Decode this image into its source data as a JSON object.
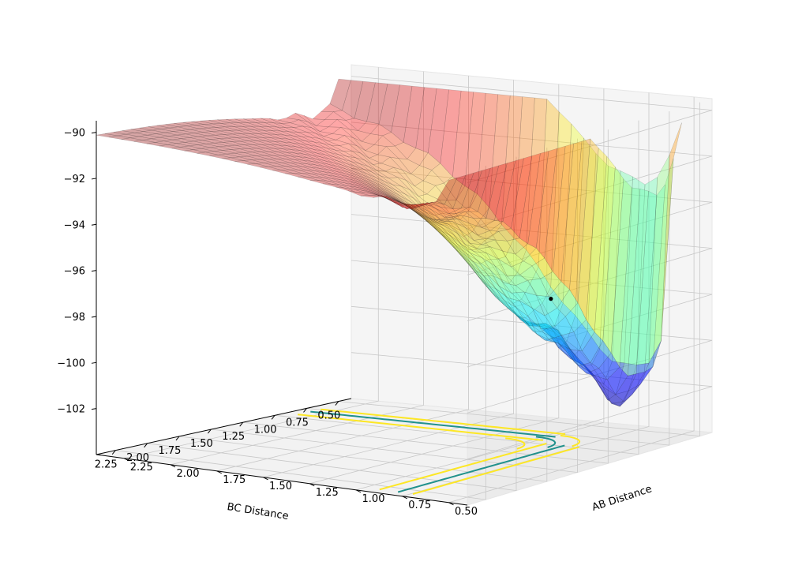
{
  "chart_data": {
    "type": "surface3d",
    "title": "",
    "xlabel": "AB Distance",
    "ylabel": "BC Distance",
    "zlabel": "",
    "x_ticks": [
      "0.50",
      "0.75",
      "1.00",
      "1.25",
      "1.50",
      "1.75",
      "2.00",
      "2.25"
    ],
    "y_ticks": [
      "0.50",
      "0.75",
      "1.00",
      "1.25",
      "1.50",
      "1.75",
      "2.00",
      "2.25"
    ],
    "z_ticks": [
      "−90",
      "−92",
      "−94",
      "−96",
      "−98",
      "−100",
      "−102"
    ],
    "xlim": [
      0.4,
      2.4
    ],
    "ylim": [
      0.4,
      2.4
    ],
    "zlim": [
      -104,
      -89.5
    ],
    "surface": {
      "colormap": "jet",
      "alpha": 0.35,
      "z_clip_max": -90,
      "z_min": -103,
      "well_minimum_bond_length": 0.74,
      "saddle_point": {
        "x": 0.93,
        "y": 0.93,
        "z": -97.8
      },
      "plateau_z": -90.3
    },
    "contour_projection": {
      "plane": "z=-104",
      "levels": [
        {
          "color": "#21918c"
        },
        {
          "color": "#fde725"
        }
      ]
    },
    "marked_point": {
      "x": 0.93,
      "y": 0.93,
      "z": -97.8,
      "color": "#000000"
    },
    "grid": true
  }
}
